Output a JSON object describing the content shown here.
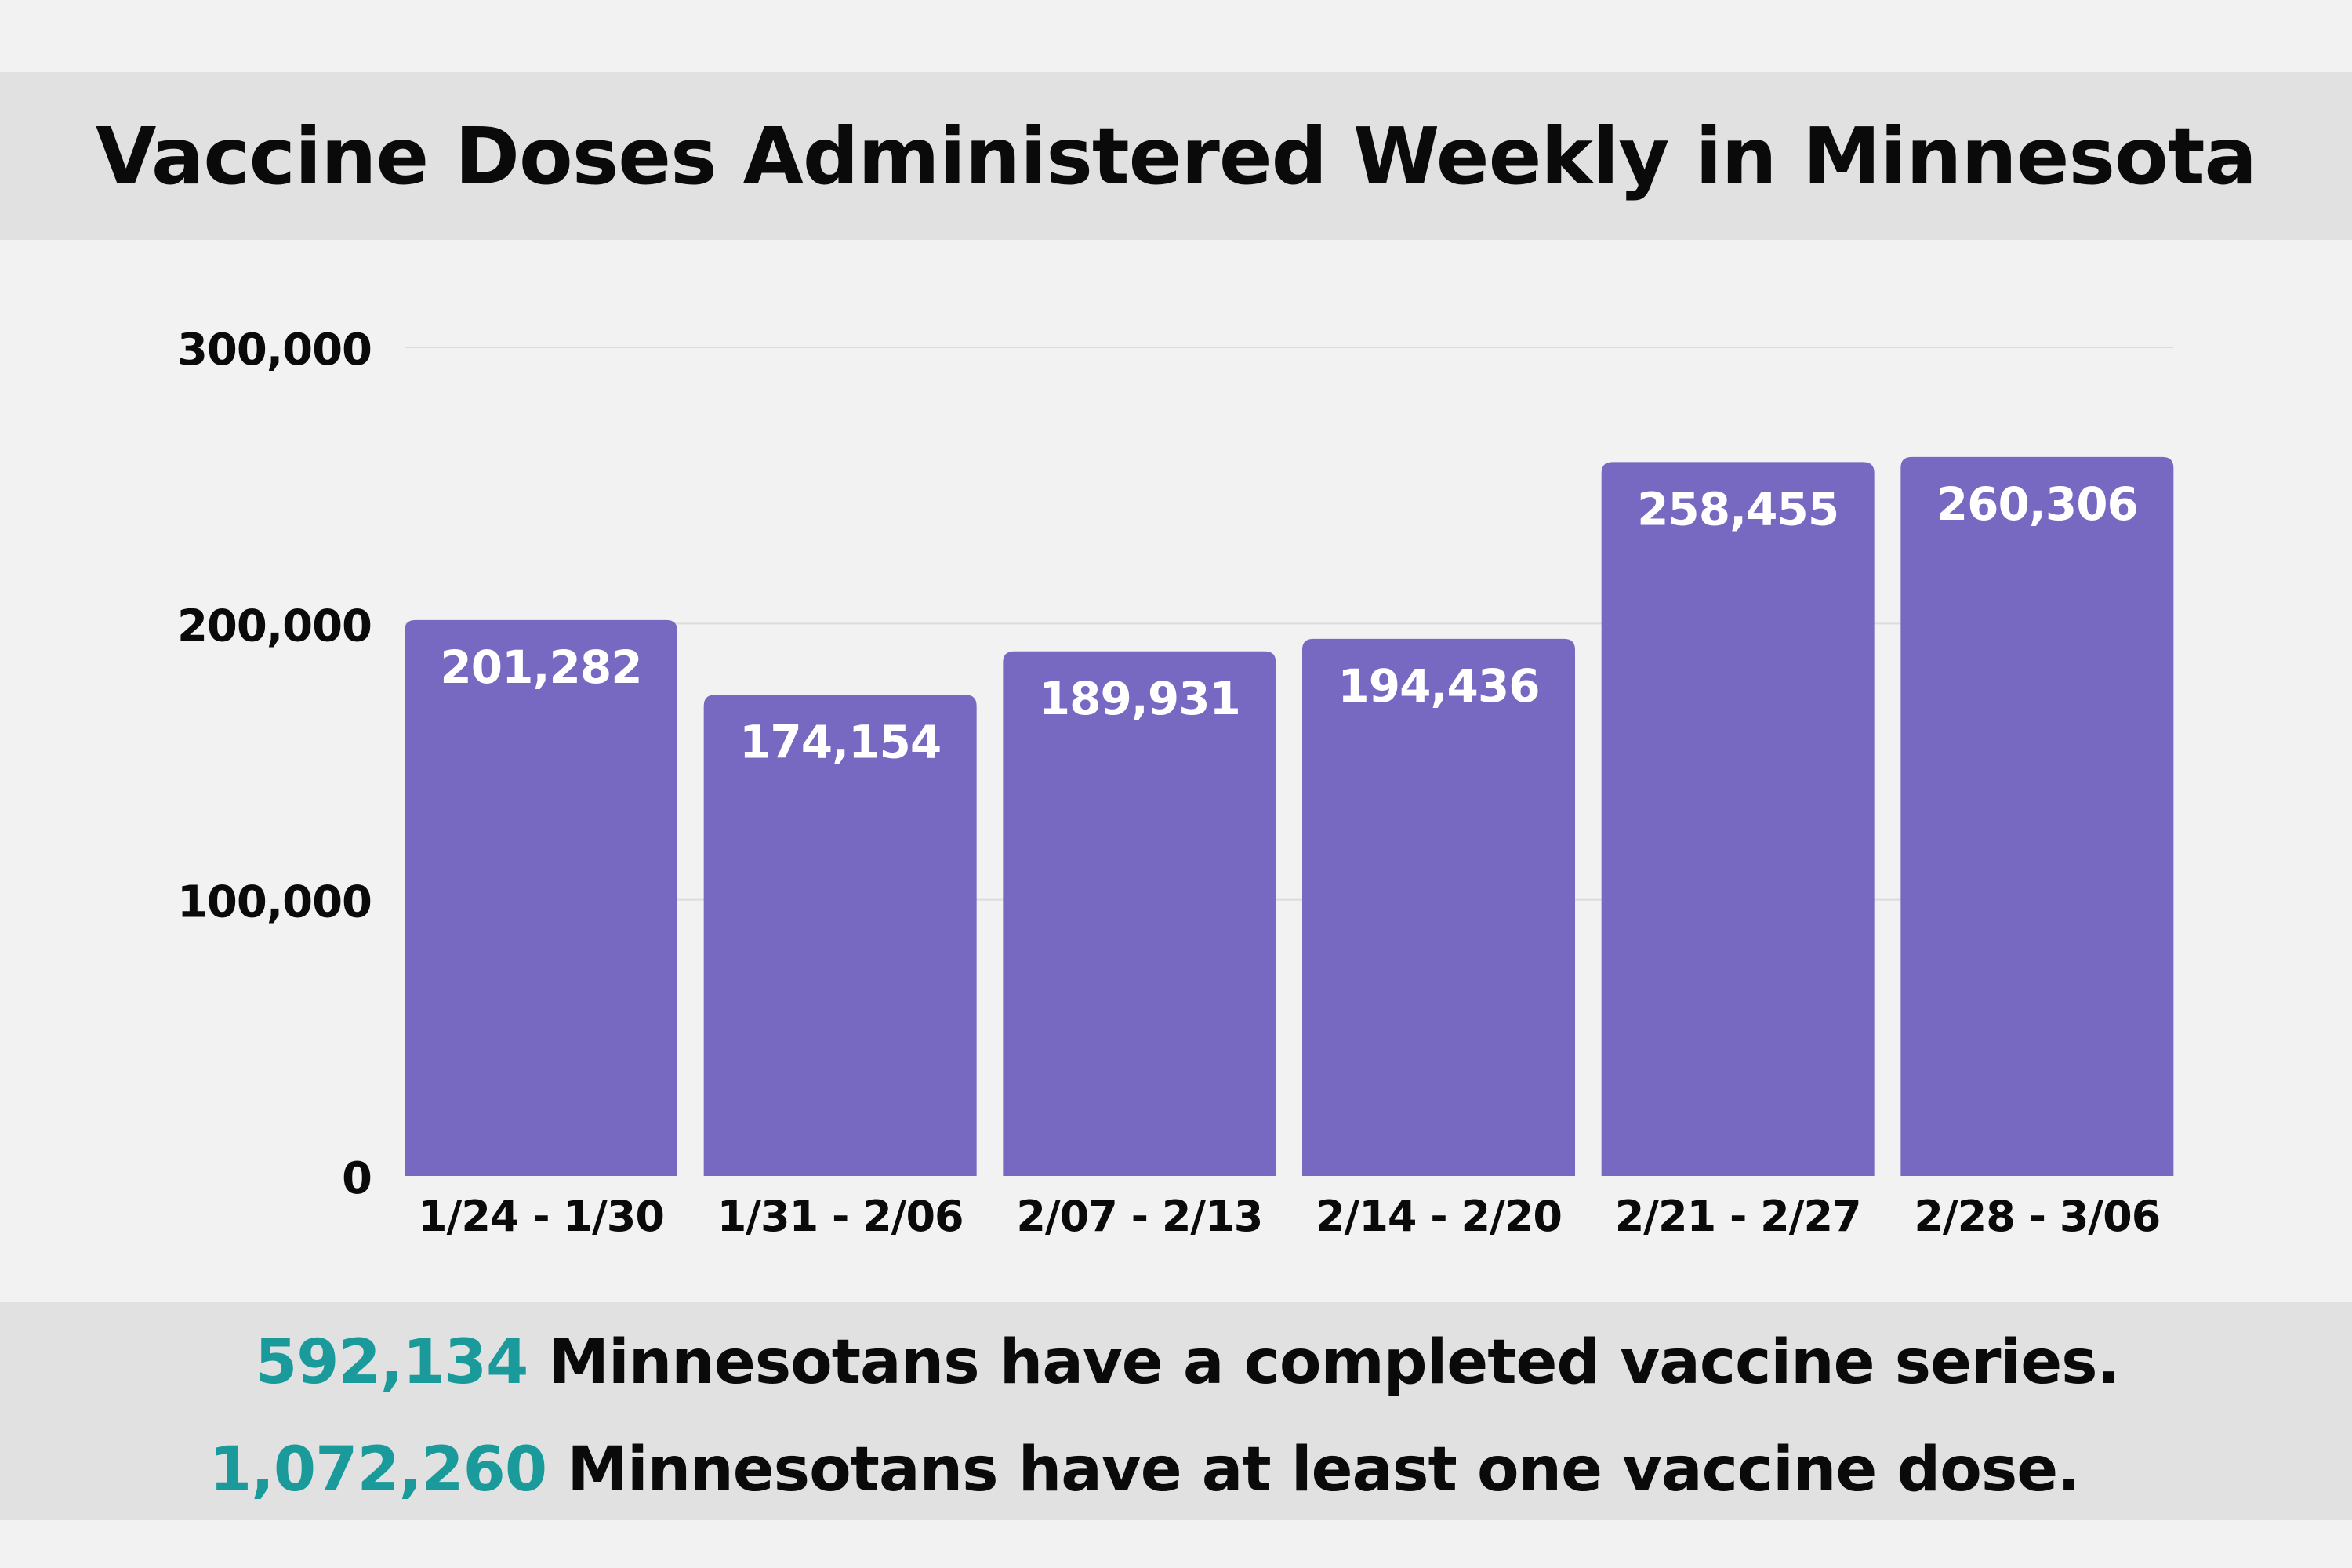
{
  "title": "Vaccine Doses Administered Weekly in Minnesota",
  "colors": {
    "bar": "#7768c2",
    "bar_label": "#ffffff",
    "highlight_number": "#1a9a9a",
    "text": "#0a0a0a",
    "band": "#e1e1e1",
    "background": "#f2f2f2",
    "gridline": "#dcdcdc"
  },
  "chart_data": {
    "type": "bar",
    "title": "Vaccine Doses Administered Weekly in Minnesota",
    "categories": [
      "1/24 - 1/30",
      "1/31 - 2/06",
      "2/07 - 2/13",
      "2/14 - 2/20",
      "2/21 - 2/27",
      "2/28 - 3/06"
    ],
    "values": [
      201282,
      174154,
      189931,
      194436,
      258455,
      260306
    ],
    "value_labels": [
      "201,282",
      "174,154",
      "189,931",
      "194,436",
      "258,455",
      "260,306"
    ],
    "yticks": [
      0,
      100000,
      200000,
      300000
    ],
    "ytick_labels": [
      "0",
      "100,000",
      "200,000",
      "300,000"
    ],
    "ylim": [
      0,
      300000
    ],
    "xlabel": "",
    "ylabel": "",
    "grid": true,
    "legend": "none"
  },
  "stats": {
    "completed_number": "592,134",
    "completed_text": "Minnesotans have a completed vaccine series.",
    "one_dose_number": "1,072,260",
    "one_dose_text": "Minnesotans have at least one vaccine dose."
  }
}
